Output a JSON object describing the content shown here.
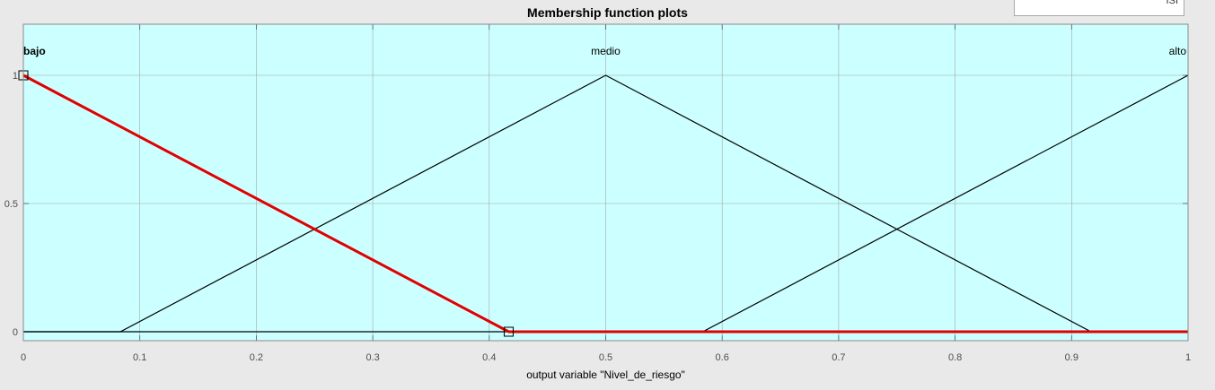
{
  "window": {
    "field_value": "ISI"
  },
  "chart_data": {
    "type": "line",
    "title": "Membership function plots",
    "xlabel": "output variable \"Nivel_de_riesgo\"",
    "ylabel": "",
    "xlim": [
      0,
      1
    ],
    "ylim": [
      0,
      1
    ],
    "xticks": [
      "0",
      "0.1",
      "0.2",
      "0.3",
      "0.4",
      "0.5",
      "0.6",
      "0.7",
      "0.8",
      "0.9",
      "1"
    ],
    "yticks": [
      "0",
      "0.5",
      "1"
    ],
    "grid": true,
    "background_color": "#ccffff",
    "selected_color": "#e00000",
    "series": [
      {
        "name": "bajo",
        "selected": true,
        "points": [
          [
            0,
            1
          ],
          [
            0.4167,
            0
          ],
          [
            1,
            0
          ]
        ]
      },
      {
        "name": "medio",
        "selected": false,
        "points": [
          [
            0,
            0
          ],
          [
            0.0833,
            0
          ],
          [
            0.5,
            1
          ],
          [
            0.9167,
            0
          ],
          [
            1,
            0
          ]
        ]
      },
      {
        "name": "alto",
        "selected": false,
        "points": [
          [
            0,
            0
          ],
          [
            0.5833,
            0
          ],
          [
            1,
            1
          ]
        ]
      }
    ],
    "selection_handles": [
      [
        0,
        1
      ],
      [
        0.4167,
        0
      ]
    ]
  }
}
